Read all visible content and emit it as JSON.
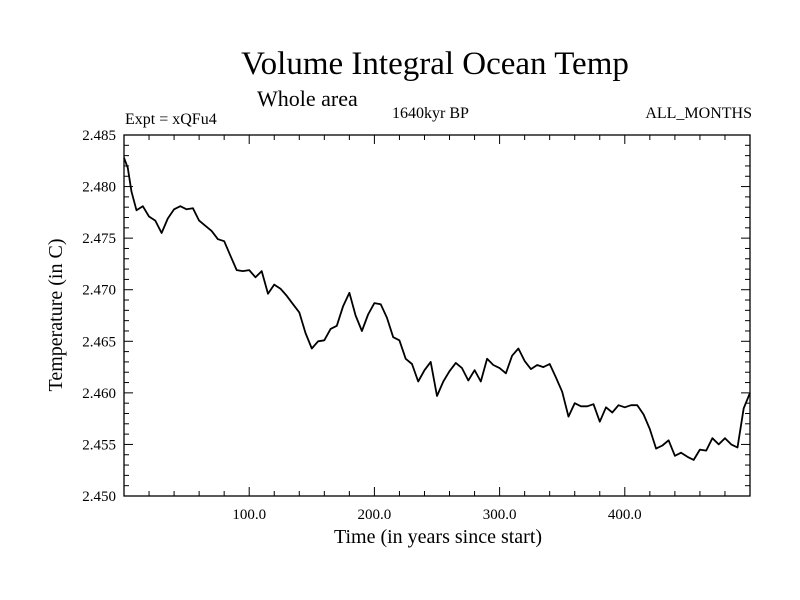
{
  "chart_data": {
    "type": "line",
    "title": "Volume Integral Ocean Temp",
    "subtitle": "Whole area",
    "experiment_label": "Expt = xQFu4",
    "center_label": "1640kyr BP",
    "right_label": "ALL_MONTHS",
    "xlabel": "Time (in years since start)",
    "ylabel": "Temperature (in C)",
    "xlim": [
      0,
      500
    ],
    "ylim": [
      2.45,
      2.485
    ],
    "xticks": [
      100,
      200,
      300,
      400
    ],
    "xtick_labels": [
      "100.0",
      "200.0",
      "300.0",
      "400.0"
    ],
    "yticks": [
      2.45,
      2.455,
      2.46,
      2.465,
      2.47,
      2.475,
      2.48,
      2.485
    ],
    "ytick_labels": [
      "2.450",
      "2.455",
      "2.460",
      "2.465",
      "2.470",
      "2.475",
      "2.480",
      "2.485"
    ],
    "grid": false,
    "series": [
      {
        "name": "Volume integral ocean temperature",
        "color": "#000000",
        "x": [
          0,
          3,
          6,
          10,
          15,
          20,
          25,
          30,
          35,
          40,
          45,
          50,
          55,
          60,
          65,
          70,
          75,
          80,
          85,
          90,
          95,
          100,
          105,
          110,
          115,
          120,
          125,
          130,
          135,
          140,
          145,
          150,
          155,
          160,
          165,
          170,
          175,
          180,
          185,
          190,
          195,
          200,
          205,
          210,
          215,
          220,
          225,
          230,
          235,
          240,
          245,
          250,
          255,
          260,
          265,
          270,
          275,
          280,
          285,
          290,
          295,
          300,
          305,
          310,
          315,
          320,
          325,
          330,
          335,
          340,
          345,
          350,
          355,
          360,
          365,
          370,
          375,
          380,
          385,
          390,
          395,
          400,
          405,
          410,
          415,
          420,
          425,
          430,
          435,
          440,
          445,
          450,
          455,
          460,
          465,
          470,
          475,
          480,
          485,
          490,
          495,
          500
        ],
        "values": [
          2.4828,
          2.4818,
          2.4795,
          2.4777,
          2.4781,
          2.4771,
          2.4767,
          2.4755,
          2.4769,
          2.4778,
          2.4781,
          2.4778,
          2.4779,
          2.4767,
          2.4762,
          2.4757,
          2.4749,
          2.4747,
          2.4733,
          2.4719,
          2.4718,
          2.4719,
          2.4712,
          2.4718,
          2.4696,
          2.4705,
          2.4701,
          2.4694,
          2.4686,
          2.4678,
          2.4658,
          2.4643,
          2.465,
          2.4651,
          2.4662,
          2.4665,
          2.4684,
          2.4697,
          2.4675,
          2.466,
          2.4676,
          2.4687,
          2.4686,
          2.4673,
          2.4654,
          2.4651,
          2.4633,
          2.4628,
          2.4611,
          2.4622,
          2.463,
          2.4597,
          2.4611,
          2.4621,
          2.4629,
          2.4624,
          2.4612,
          2.4622,
          2.4611,
          2.4633,
          2.4627,
          2.4624,
          2.4619,
          2.4636,
          2.4643,
          2.4631,
          2.4623,
          2.4627,
          2.4625,
          2.4628,
          2.4615,
          2.4601,
          2.4577,
          2.459,
          2.4587,
          2.4587,
          2.4589,
          2.4572,
          2.4586,
          2.4581,
          2.4588,
          2.4586,
          2.4588,
          2.4588,
          2.4579,
          2.4565,
          2.4546,
          2.4549,
          2.4554,
          2.4539,
          2.4542,
          2.4538,
          2.4535,
          2.4545,
          2.4544,
          2.4556,
          2.455,
          2.4556,
          2.455,
          2.4547,
          2.4585,
          2.46
        ]
      }
    ]
  }
}
